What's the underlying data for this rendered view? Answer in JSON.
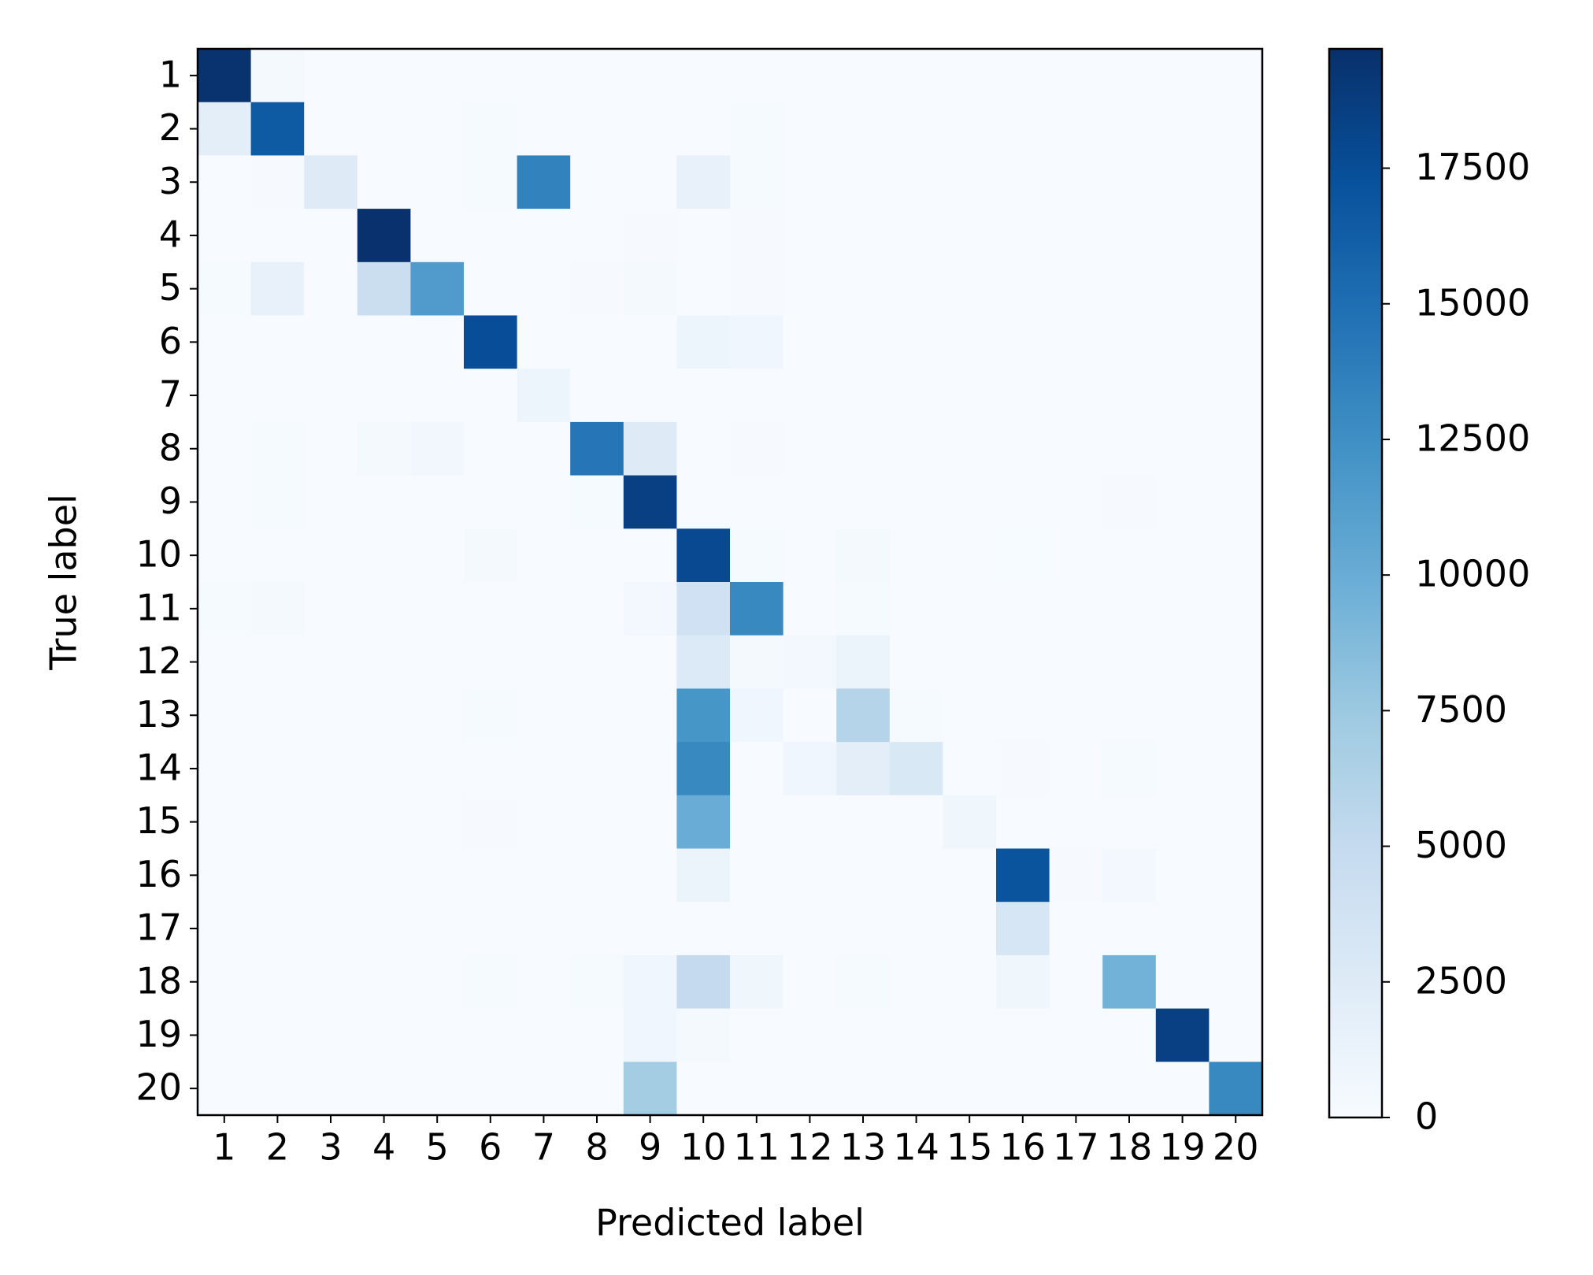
{
  "chart_data": {
    "type": "heatmap",
    "x_label": "Predicted label",
    "y_label": "True label",
    "x_categories": [
      "1",
      "2",
      "3",
      "4",
      "5",
      "6",
      "7",
      "8",
      "9",
      "10",
      "11",
      "12",
      "13",
      "14",
      "15",
      "16",
      "17",
      "18",
      "19",
      "20"
    ],
    "y_categories": [
      "1",
      "2",
      "3",
      "4",
      "5",
      "6",
      "7",
      "8",
      "9",
      "10",
      "11",
      "12",
      "13",
      "14",
      "15",
      "16",
      "17",
      "18",
      "19",
      "20"
    ],
    "colormap": "Blues",
    "values": [
      [
        19500,
        300,
        0,
        0,
        0,
        0,
        0,
        0,
        0,
        0,
        0,
        0,
        0,
        0,
        0,
        0,
        0,
        0,
        0,
        0
      ],
      [
        2000,
        16500,
        0,
        0,
        0,
        200,
        0,
        0,
        0,
        0,
        200,
        0,
        0,
        0,
        0,
        0,
        0,
        0,
        0,
        0
      ],
      [
        0,
        100,
        2500,
        0,
        0,
        150,
        13500,
        0,
        0,
        1500,
        200,
        0,
        0,
        0,
        0,
        0,
        0,
        0,
        0,
        0
      ],
      [
        0,
        0,
        0,
        19600,
        0,
        0,
        0,
        0,
        100,
        0,
        100,
        0,
        0,
        0,
        0,
        0,
        0,
        0,
        0,
        0
      ],
      [
        200,
        1500,
        0,
        4500,
        11500,
        0,
        0,
        100,
        300,
        0,
        100,
        0,
        0,
        0,
        0,
        0,
        0,
        0,
        0,
        0
      ],
      [
        0,
        0,
        0,
        0,
        0,
        17500,
        0,
        0,
        0,
        1000,
        700,
        0,
        0,
        0,
        0,
        0,
        0,
        0,
        0,
        0
      ],
      [
        0,
        0,
        0,
        0,
        0,
        0,
        1000,
        0,
        0,
        0,
        0,
        0,
        0,
        0,
        0,
        0,
        0,
        0,
        0,
        0
      ],
      [
        0,
        200,
        0,
        300,
        600,
        0,
        0,
        14500,
        2500,
        0,
        100,
        0,
        0,
        0,
        0,
        0,
        0,
        0,
        0,
        0
      ],
      [
        0,
        150,
        0,
        0,
        0,
        0,
        0,
        200,
        18500,
        0,
        0,
        0,
        0,
        0,
        0,
        0,
        0,
        100,
        0,
        0
      ],
      [
        0,
        0,
        0,
        0,
        0,
        300,
        0,
        0,
        0,
        17800,
        200,
        0,
        250,
        0,
        0,
        50,
        0,
        0,
        0,
        0
      ],
      [
        150,
        300,
        0,
        0,
        0,
        0,
        0,
        0,
        400,
        4000,
        13000,
        0,
        200,
        0,
        0,
        0,
        0,
        0,
        0,
        0
      ],
      [
        0,
        0,
        0,
        0,
        0,
        0,
        0,
        0,
        0,
        2700,
        300,
        500,
        1200,
        0,
        0,
        0,
        0,
        0,
        0,
        0
      ],
      [
        0,
        0,
        0,
        0,
        0,
        150,
        0,
        0,
        0,
        12000,
        700,
        0,
        6000,
        150,
        0,
        0,
        0,
        0,
        0,
        0
      ],
      [
        0,
        0,
        0,
        0,
        0,
        0,
        0,
        0,
        0,
        13000,
        0,
        700,
        2000,
        3000,
        0,
        100,
        0,
        150,
        0,
        0
      ],
      [
        0,
        0,
        0,
        0,
        0,
        100,
        0,
        0,
        0,
        10000,
        0,
        0,
        0,
        0,
        800,
        0,
        0,
        0,
        0,
        0
      ],
      [
        0,
        0,
        0,
        0,
        0,
        0,
        0,
        0,
        0,
        1200,
        0,
        0,
        0,
        0,
        0,
        17000,
        100,
        400,
        0,
        0
      ],
      [
        0,
        0,
        0,
        0,
        0,
        0,
        0,
        0,
        0,
        0,
        0,
        0,
        0,
        0,
        0,
        3200,
        0,
        0,
        0,
        0
      ],
      [
        0,
        0,
        0,
        0,
        0,
        200,
        0,
        150,
        700,
        5000,
        800,
        0,
        200,
        0,
        0,
        800,
        0,
        9500,
        0,
        0
      ],
      [
        0,
        0,
        0,
        0,
        0,
        0,
        0,
        0,
        700,
        300,
        0,
        0,
        0,
        0,
        0,
        0,
        0,
        0,
        18500,
        0
      ],
      [
        0,
        0,
        0,
        0,
        0,
        0,
        0,
        0,
        7000,
        0,
        0,
        0,
        0,
        0,
        0,
        0,
        0,
        0,
        0,
        13000
      ]
    ],
    "clim": [
      0,
      19700
    ],
    "cticks": [
      0,
      2500,
      5000,
      7500,
      10000,
      12500,
      15000,
      17500
    ]
  }
}
